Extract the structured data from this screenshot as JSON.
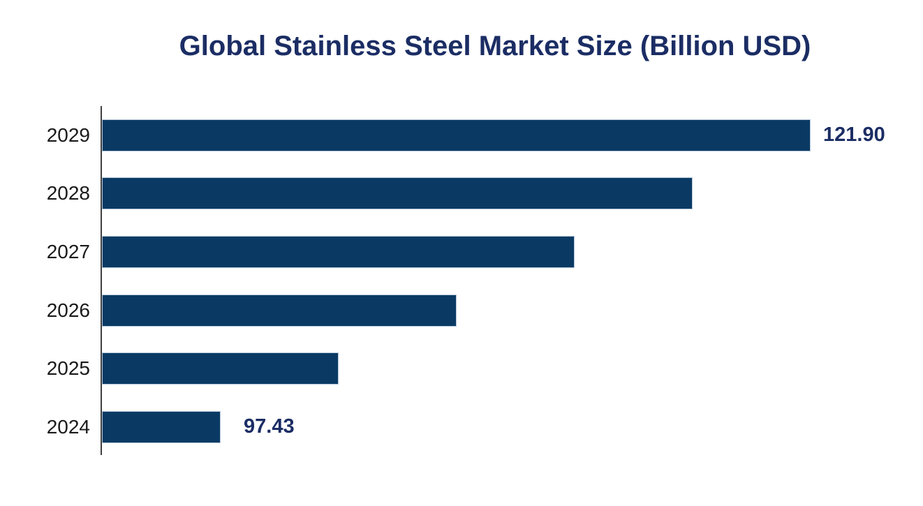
{
  "chart_data": {
    "type": "bar",
    "orientation": "horizontal",
    "title": "Global Stainless Steel Market Size (Billion USD)",
    "categories": [
      "2029",
      "2028",
      "2027",
      "2026",
      "2025",
      "2024"
    ],
    "values": [
      121.9,
      117.01,
      112.11,
      107.22,
      102.32,
      97.43
    ],
    "value_labels": [
      "121.90",
      "",
      "",
      "",
      "",
      "97.43"
    ],
    "xlim": [
      92.5,
      125
    ],
    "grid": false,
    "legend": false,
    "colors": {
      "bar": "#0a3a64",
      "bar_border": "#b6c8da",
      "title": "#1b2d64",
      "value_label": "#1b2d64",
      "category_label": "#1a1a1a",
      "axis_line": "#3f3f3f"
    }
  }
}
